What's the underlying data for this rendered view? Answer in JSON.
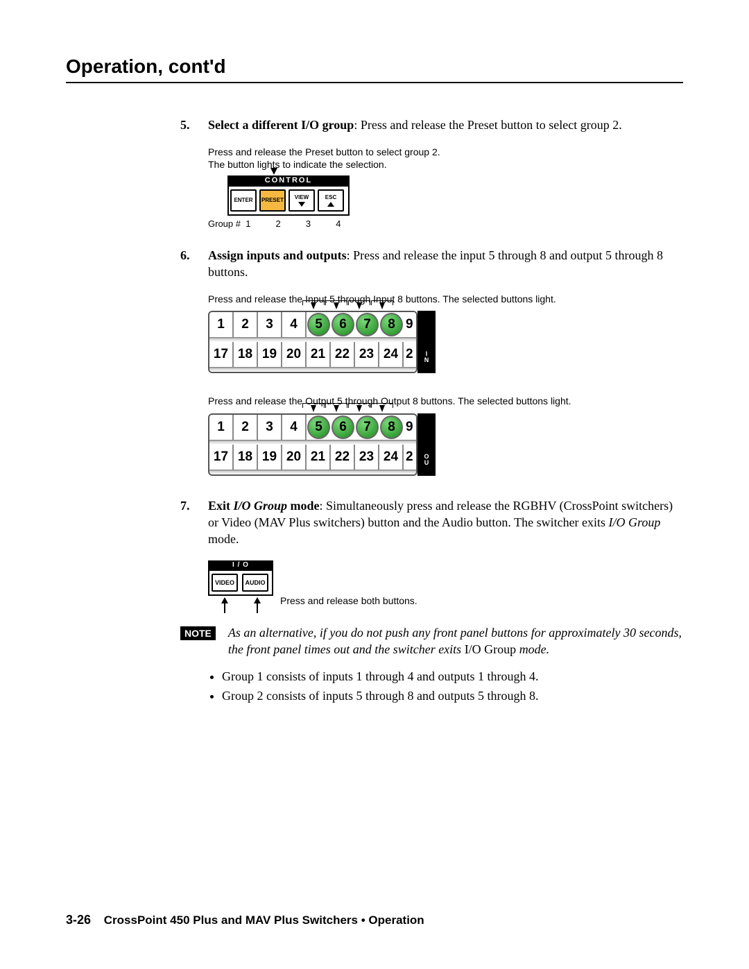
{
  "header": "Operation, cont'd",
  "step5": {
    "num": "5.",
    "bold": "Select a different I/O group",
    "rest": ": Press and release the Preset button to select group 2.",
    "caption_l1": "Press and release the Preset button to select group 2.",
    "caption_l2": "The button lights to indicate the selection.",
    "control_label": "CONTROL",
    "btns": {
      "enter": "ENTER",
      "preset": "PRESET",
      "view": "VIEW",
      "esc": "ESC"
    },
    "group_label": "Group #  1          2          3          4",
    "lit_color": "#f5b942"
  },
  "step6": {
    "num": "6.",
    "bold": "Assign inputs and outputs",
    "rest": ": Press and release the input 5 through 8 and output 5 through 8 buttons.",
    "caption_inputs": "Press and release the Input 5 through Input 8 buttons.  The selected buttons light.",
    "caption_outputs": "Press and release the Output 5 through Output 8 buttons.  The selected buttons light.",
    "row_top": [
      "1",
      "2",
      "3",
      "4",
      "5",
      "6",
      "7",
      "8"
    ],
    "row_top_partial": "9",
    "row_bottom": [
      "17",
      "18",
      "19",
      "20",
      "21",
      "22",
      "23",
      "24"
    ],
    "row_bottom_partial": "2",
    "selected_indices": [
      4,
      5,
      6,
      7
    ],
    "selected_color": "#1a8a1a",
    "in_label": "I\nN",
    "out_label": "O\nU"
  },
  "step7": {
    "num": "7.",
    "bold": "Exit",
    "bolditalic": "I/O Group",
    "bold2": "mode",
    "rest": ": Simultaneously press and release the RGBHV (CrossPoint switchers) or Video (MAV Plus switchers) button and the Audio button.  The switcher exits ",
    "italic_tail": "I/O Group",
    "tail": " mode.",
    "io_label": "I / O",
    "video": "VIDEO",
    "audio": "AUDIO",
    "io_caption": "Press and release both buttons."
  },
  "note": {
    "badge": "NOTE",
    "text_a": "As an alternative, if you do not push any front panel buttons for approximately 30 seconds, the front panel times out and the switcher exits ",
    "roman": "I/O Group",
    "text_b": " mode."
  },
  "bullets": [
    "Group 1 consists of inputs 1 through 4 and outputs 1 through 4.",
    "Group 2 consists of inputs 5 through 8 and outputs 5 through 8."
  ],
  "footer": {
    "page": "3-26",
    "title": "CrossPoint 450 Plus and MAV Plus Switchers • Operation"
  }
}
